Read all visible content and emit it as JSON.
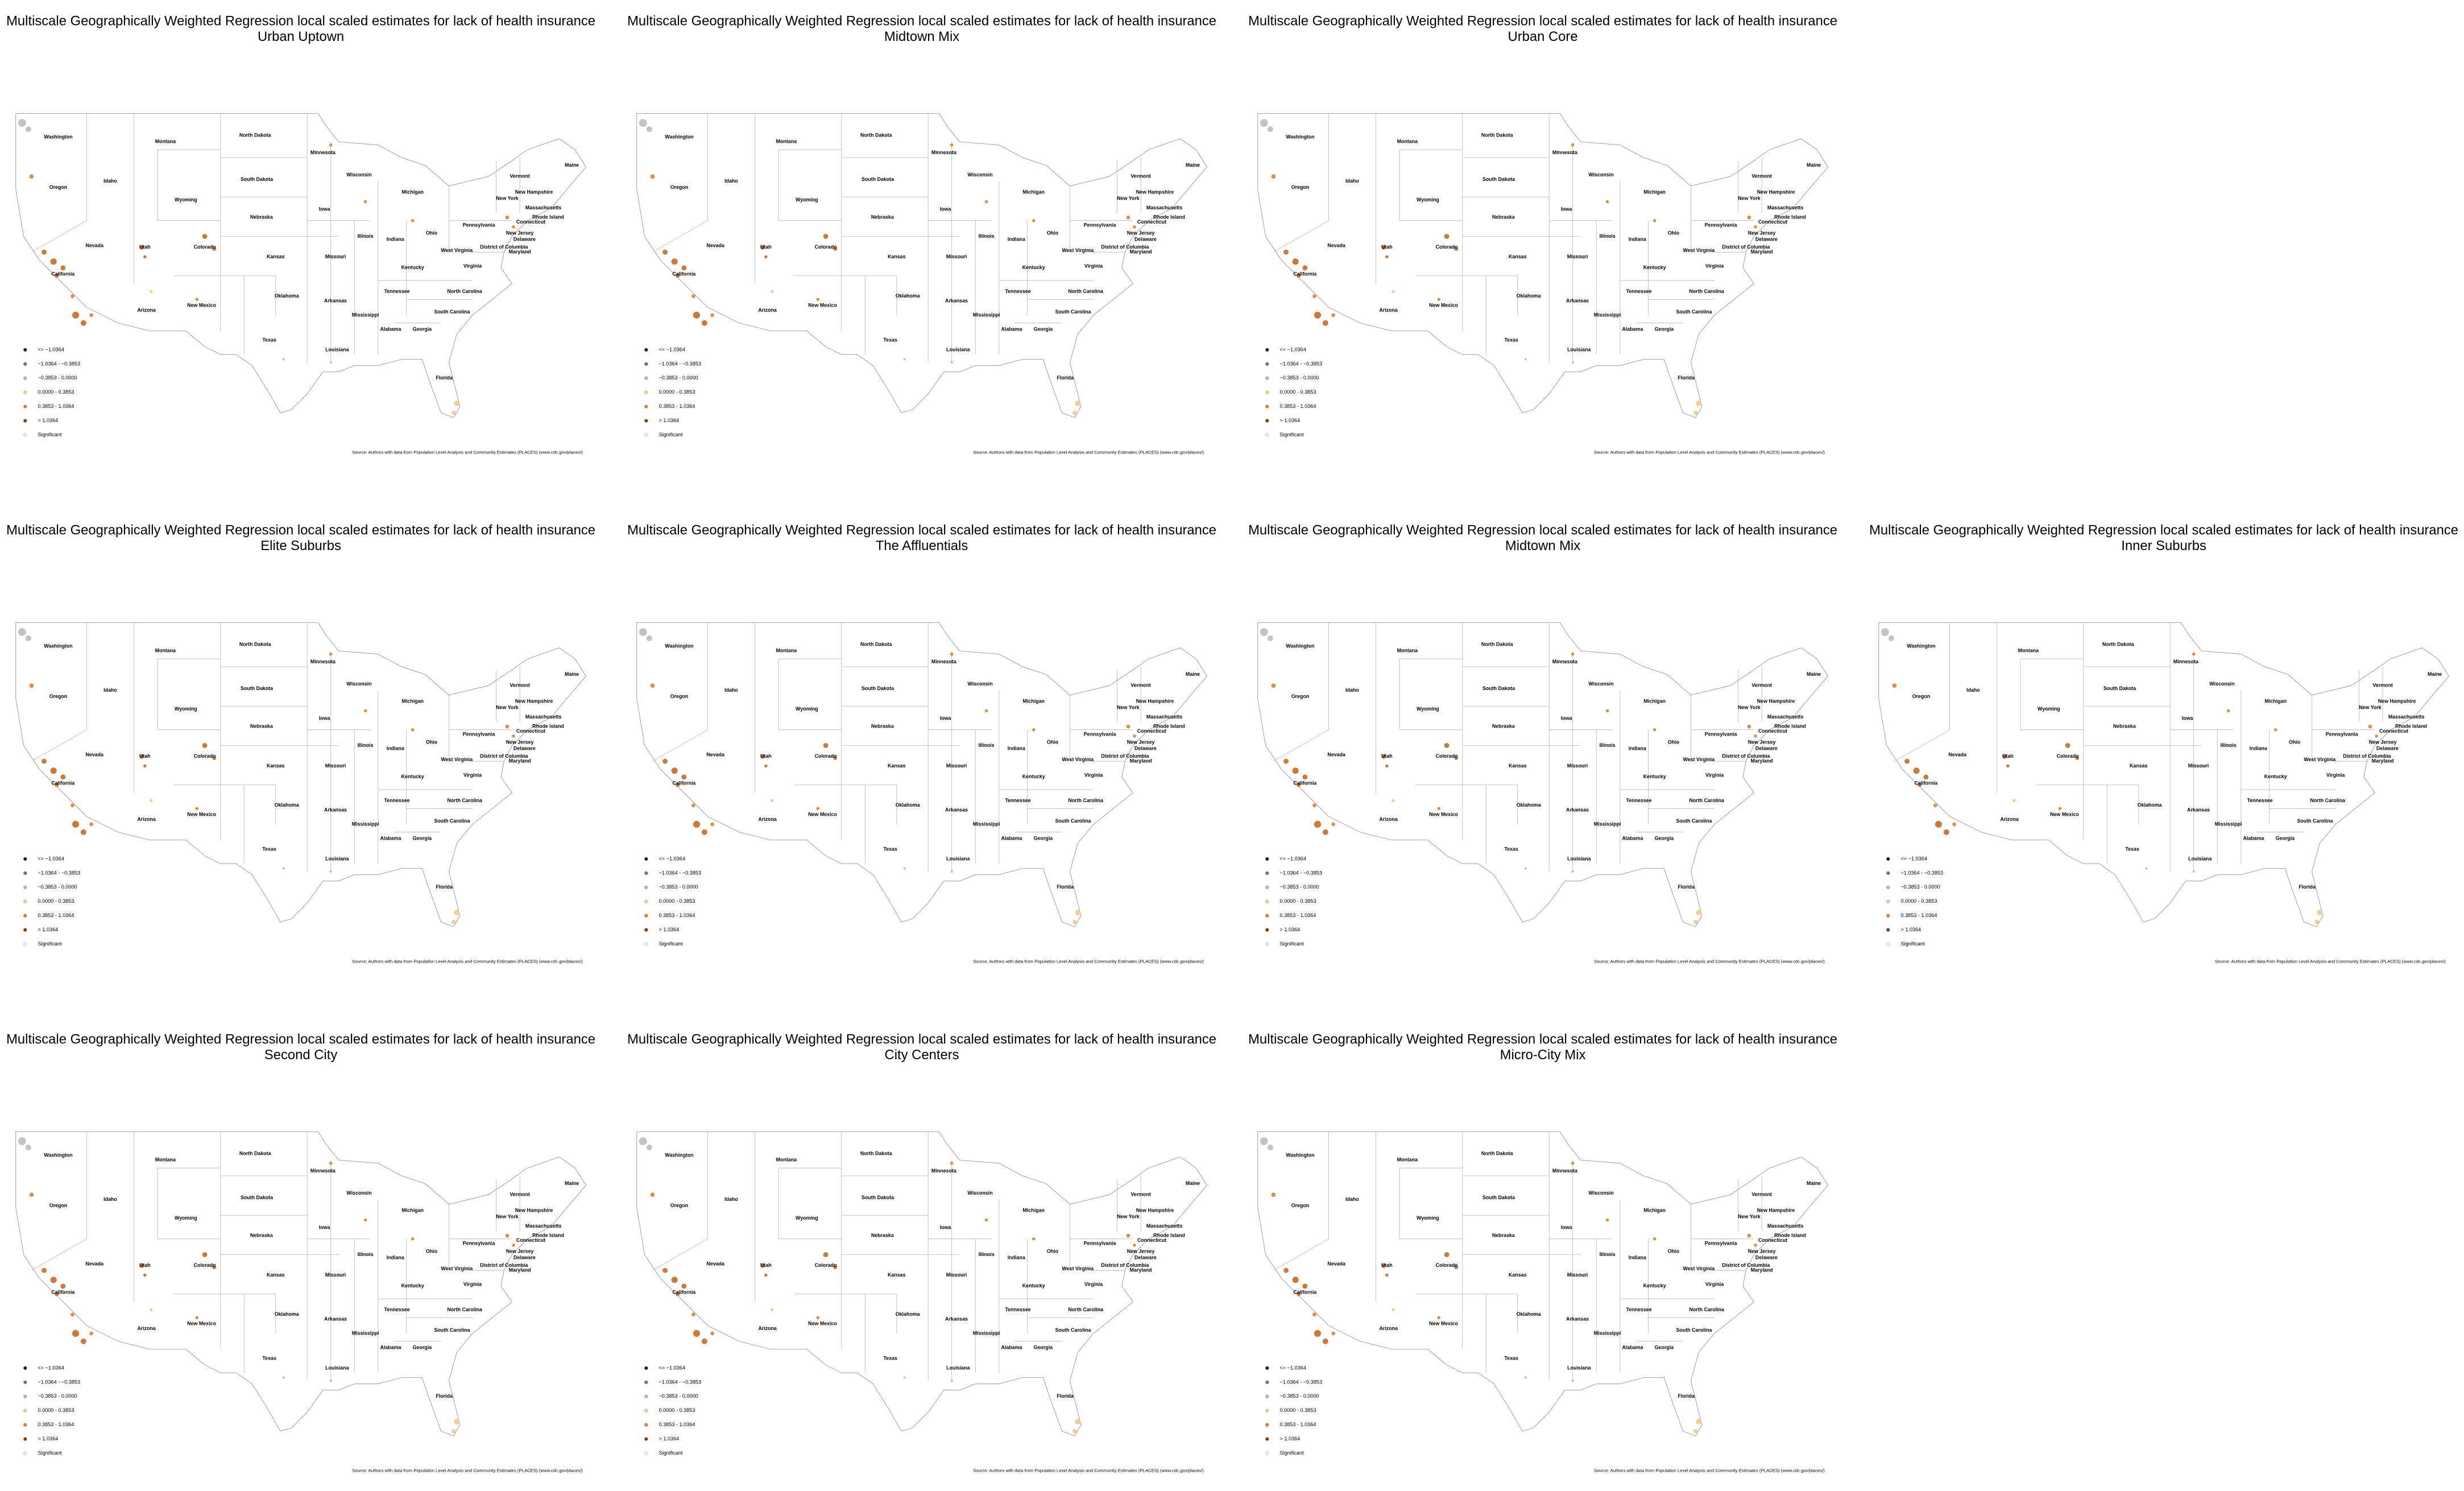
{
  "panels": [
    {
      "title": "Multiscale Geographically Weighted Regression local scaled estimates for lack of health insurance",
      "subtitle": "Urban Uptown"
    },
    {
      "title": "Multiscale Geographically Weighted Regression local scaled estimates for lack of health insurance",
      "subtitle": "Midtown Mix"
    },
    {
      "title": "Multiscale Geographically Weighted Regression local scaled estimates for lack of health insurance",
      "subtitle": "Urban Core"
    },
    {
      "title": "Multiscale Geographically Weighted Regression local scaled estimates for lack of health insurance",
      "subtitle": "Elite Suburbs"
    },
    {
      "title": "Multiscale Geographically Weighted Regression local scaled estimates for lack of health insurance",
      "subtitle": "The Affluentials"
    },
    {
      "title": "Multiscale Geographically Weighted Regression local scaled estimates for lack of health insurance",
      "subtitle": "Midtown Mix"
    },
    {
      "title": "Multiscale Geographically Weighted Regression local scaled estimates for lack of health insurance",
      "subtitle": "Inner Suburbs"
    },
    {
      "title": "Multiscale Geographically Weighted Regression local scaled estimates for lack of health insurance",
      "subtitle": "Second City"
    },
    {
      "title": "Multiscale Geographically Weighted Regression local scaled estimates for lack of health insurance",
      "subtitle": "City Centers"
    },
    {
      "title": "Multiscale Geographically Weighted Regression local scaled estimates for lack of health insurance",
      "subtitle": "Micro-City Mix"
    }
  ],
  "state_labels": [
    "Washington",
    "Montana",
    "North Dakota",
    "Minnesota",
    "Oregon",
    "Idaho",
    "South Dakota",
    "Wisconsin",
    "Michigan",
    "Wyoming",
    "Iowa",
    "Nebraska",
    "Nevada",
    "Utah",
    "Colorado",
    "Kansas",
    "Missouri",
    "Illinois",
    "Indiana",
    "Ohio",
    "Pennsylvania",
    "New York",
    "Vermont",
    "New Hampshire",
    "Maine",
    "Massachusetts",
    "Rhode Island",
    "Connecticut",
    "New Jersey",
    "Delaware",
    "Maryland",
    "West Virginia",
    "District of Columbia",
    "Virginia",
    "Kentucky",
    "California",
    "Tennessee",
    "North Carolina",
    "Oklahoma",
    "Arkansas",
    "Arizona",
    "New Mexico",
    "South Carolina",
    "Mississippi",
    "Alabama",
    "Georgia",
    "Texas",
    "Louisiana",
    "Florida"
  ],
  "legend": {
    "items": [
      {
        "label": "<= −1.0364",
        "color": "#1b1b4d"
      },
      {
        "label": "−1.0364 - −0.3853",
        "color": "#6b6b9e"
      },
      {
        "label": "−0.3853 - 0.0000",
        "color": "#b4b4d6"
      },
      {
        "label": "0.0000 - 0.3853",
        "color": "#f2c98e"
      },
      {
        "label": "0.3853 - 1.0364",
        "color": "#e0802f"
      },
      {
        "label": "> 1.0364",
        "color": "#8a3a05"
      },
      {
        "label": "Significant",
        "color": "#ececec"
      }
    ]
  },
  "source": "Source: Authors with data from Population Level Analysis and Community Estimates (PLACES) (www.cdc.gov/places/)"
}
